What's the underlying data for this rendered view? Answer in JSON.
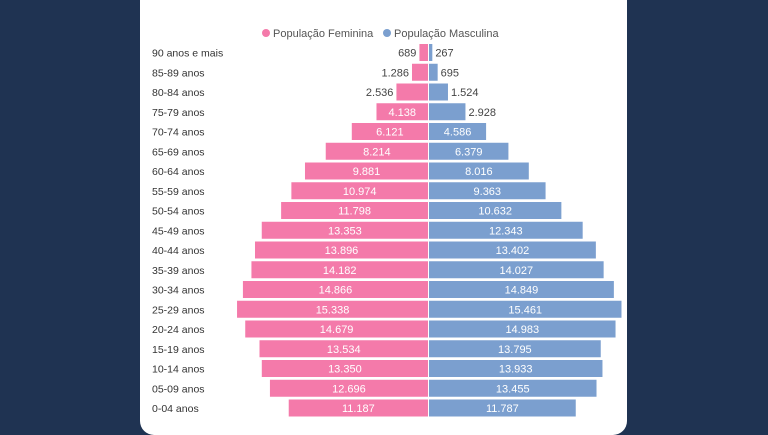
{
  "chart_data": {
    "type": "bar",
    "orientation": "horizontal-pyramid",
    "legend_position": "top",
    "categories": [
      "90 anos e mais",
      "85-89 anos",
      "80-84 anos",
      "75-79 anos",
      "70-74 anos",
      "65-69 anos",
      "60-64 anos",
      "55-59 anos",
      "50-54 anos",
      "45-49 anos",
      "40-44 anos",
      "35-39 anos",
      "30-34 anos",
      "25-29 anos",
      "20-24 anos",
      "15-19 anos",
      "10-14 anos",
      "05-09 anos",
      "0-04 anos"
    ],
    "series": [
      {
        "name": "População Feminina",
        "color": "#f47aaa",
        "values": [
          689,
          1286,
          2536,
          4138,
          6121,
          8214,
          9881,
          10974,
          11798,
          13353,
          13896,
          14182,
          14866,
          15338,
          14679,
          13534,
          13350,
          12696,
          11187
        ],
        "labels": [
          "689",
          "1.286",
          "2.536",
          "4.138",
          "6.121",
          "8.214",
          "9.881",
          "10.974",
          "11.798",
          "13.353",
          "13.896",
          "14.182",
          "14.866",
          "15.338",
          "14.679",
          "13.534",
          "13.350",
          "12.696",
          "11.187"
        ]
      },
      {
        "name": "População Masculina",
        "color": "#7b9fcf",
        "values": [
          267,
          695,
          1524,
          2928,
          4586,
          6379,
          8016,
          9363,
          10632,
          12343,
          13402,
          14027,
          14849,
          15461,
          14983,
          13795,
          13933,
          13455,
          11787
        ],
        "labels": [
          "267",
          "695",
          "1.524",
          "2.928",
          "4.586",
          "6.379",
          "8.016",
          "9.363",
          "10.632",
          "12.343",
          "13.402",
          "14.027",
          "14.849",
          "15.461",
          "14.983",
          "13.795",
          "13.933",
          "13.455",
          "11.787"
        ]
      }
    ],
    "grid": false
  }
}
